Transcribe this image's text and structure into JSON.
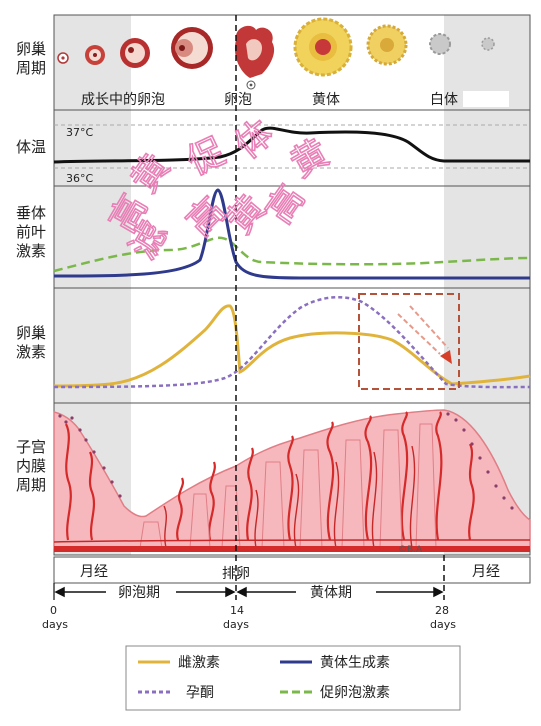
{
  "rows": {
    "ovarian_cycle": {
      "label_line1": "卵巢",
      "label_line2": "周期"
    },
    "bbt": {
      "label": "体温"
    },
    "pituitary": {
      "label_line1": "垂体",
      "label_line2": "前叶",
      "label_line3": "激素"
    },
    "ovarian_hormones": {
      "label_line1": "卵巢",
      "label_line2": "激素"
    },
    "endometrium": {
      "label_line1": "子宫",
      "label_line2": "内膜",
      "label_line3": "周期"
    }
  },
  "stages": {
    "growing_follicles": "成长中的卵泡",
    "ovulation_follicle": "卵泡",
    "corpus_luteum": "黄体",
    "corpus_albicans": "白体"
  },
  "temperature": {
    "high": "37°C",
    "low": "36°C"
  },
  "watermark": {
    "chars": [
      "高",
      "黄",
      "促",
      "滤",
      "高",
      "黄",
      "体",
      "高",
      "黄"
    ]
  },
  "phases": {
    "menses_left": "月经",
    "ovulation": "排卵",
    "menses_right": "月经",
    "follicular": "卵泡期",
    "luteal": "黄体期"
  },
  "days": {
    "d0": "0",
    "d0_unit": "days",
    "d14": "14",
    "d14_unit": "days",
    "d28": "28",
    "d28_unit": "days"
  },
  "endometrium_mark": "©B.A",
  "legend": {
    "estrogen": "雌激素",
    "lh": "黄体生成素",
    "progesterone": "孕酮",
    "fsh": "促卵泡激素"
  },
  "colors": {
    "estrogen": "#e0b43c",
    "lh": "#2f3a8c",
    "progesterone": "#8a6fc0",
    "fsh": "#7bb84a",
    "watermark": "#e87fb6",
    "menses_shade": "#e4e4e4",
    "endometrium": "#f7b8bd",
    "artery": "#d42a2a",
    "highlight_box": "#b5533a"
  }
}
